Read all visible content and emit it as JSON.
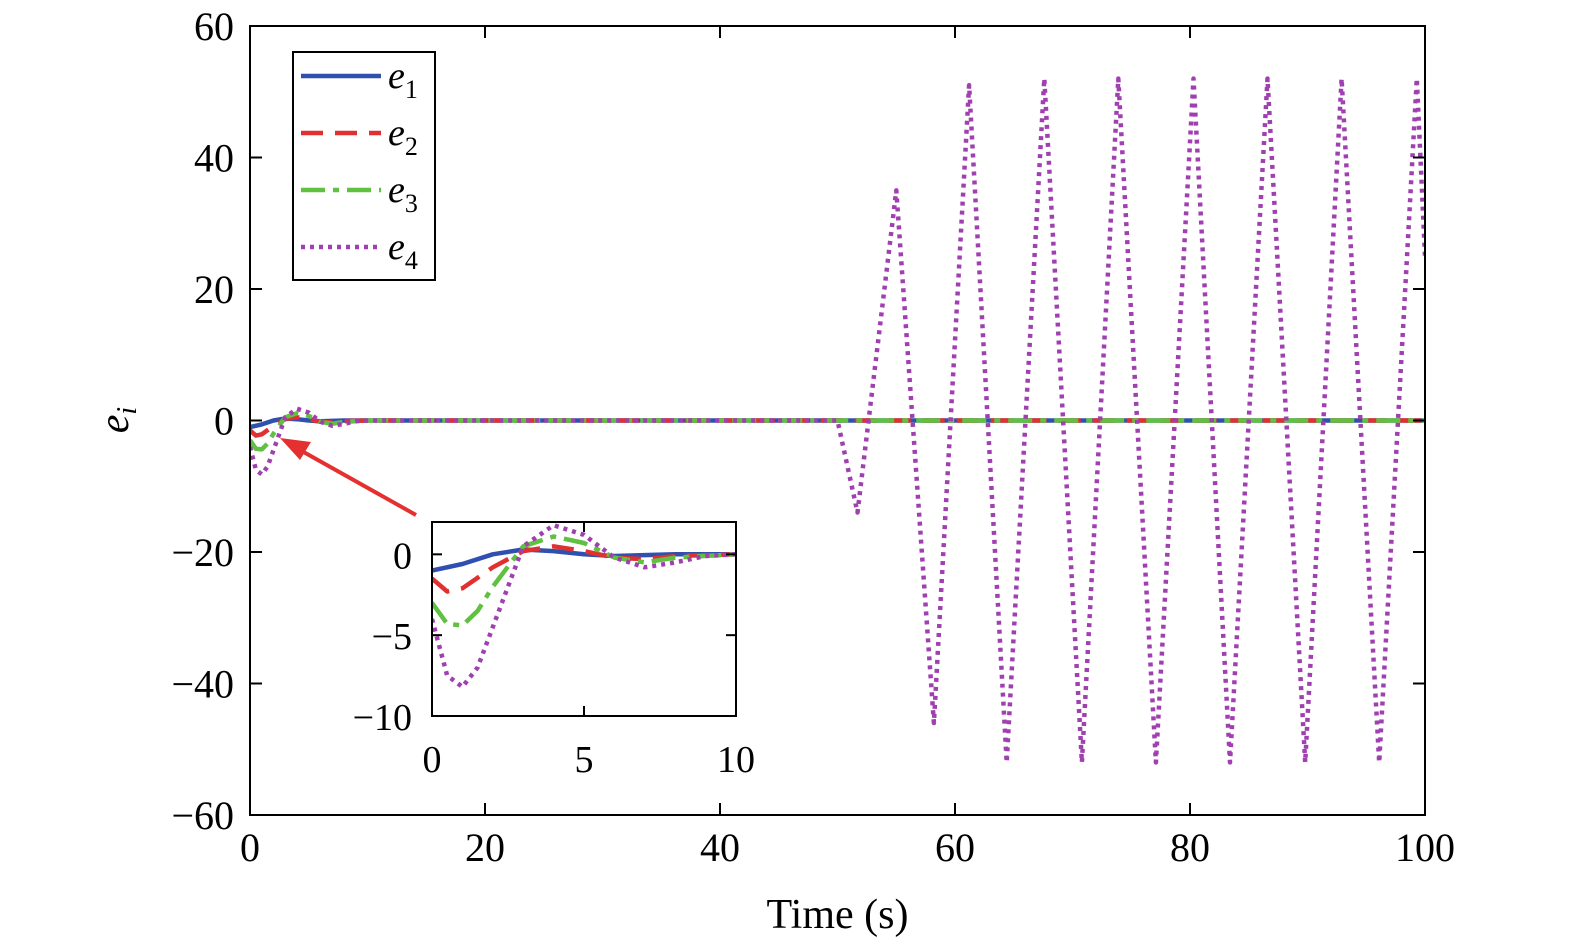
{
  "chart_data": [
    {
      "type": "line",
      "xlabel": "Time (s)",
      "ylabel": "e",
      "ylabel_subscript": "i",
      "xlim": [
        0,
        100
      ],
      "ylim": [
        -60,
        60
      ],
      "xticks": [
        0,
        20,
        40,
        60,
        80,
        100
      ],
      "yticks": [
        60,
        40,
        20,
        0,
        -20,
        -40,
        -60
      ],
      "xtick_labels": [
        "0",
        "20",
        "40",
        "60",
        "80",
        "100"
      ],
      "ytick_labels": [
        "60",
        "40",
        "20",
        "0",
        "−20",
        "−40",
        "−60"
      ],
      "grid": false,
      "legend": "top-left",
      "series": [
        {
          "name": "e",
          "subscript": "1",
          "color": "#3050b0",
          "style": "solid",
          "x": [
            0,
            1,
            2,
            3,
            4,
            5,
            6,
            8,
            10,
            50,
            100
          ],
          "y": [
            -1,
            -0.6,
            0,
            0.3,
            0.2,
            0,
            -0.1,
            0,
            0,
            0,
            0
          ]
        },
        {
          "name": "e",
          "subscript": "2",
          "color": "#e03030",
          "style": "dashed",
          "x": [
            0,
            0.5,
            1,
            2,
            3,
            4,
            5,
            6,
            7,
            8,
            10,
            50,
            100
          ],
          "y": [
            -1.5,
            -2.3,
            -2.1,
            -0.8,
            0.2,
            0.5,
            0.2,
            -0.2,
            -0.3,
            -0.1,
            0,
            0,
            0
          ]
        },
        {
          "name": "e",
          "subscript": "3",
          "color": "#60c040",
          "style": "dashdot",
          "x": [
            0,
            0.5,
            1,
            1.5,
            2,
            3,
            4,
            5,
            6,
            7,
            8,
            10,
            50,
            100
          ],
          "y": [
            -3,
            -4.3,
            -4.4,
            -3.5,
            -2,
            0.5,
            1.1,
            0.7,
            -0.2,
            -0.5,
            -0.2,
            0,
            0,
            0
          ]
        },
        {
          "name": "e",
          "subscript": "4",
          "color": "#a040b0",
          "style": "dotted",
          "x": [
            0,
            0.5,
            1,
            1.5,
            2,
            3,
            4,
            5,
            6,
            7,
            8,
            9,
            10,
            50,
            51.7,
            55,
            58.2,
            61.2,
            64.4,
            67.6,
            70.8,
            73.9,
            77.1,
            80.3,
            83.4,
            86.6,
            89.8,
            92.9,
            96.1,
            99.3,
            100
          ],
          "y": [
            -4,
            -7.5,
            -8.2,
            -7,
            -4.5,
            0.5,
            1.8,
            1.2,
            -0.2,
            -0.8,
            -0.5,
            -0.1,
            0,
            0,
            -14,
            35,
            -46,
            51,
            -52,
            52,
            -52,
            52,
            -52,
            52,
            -52,
            52,
            -52,
            52,
            -52,
            52,
            25
          ]
        }
      ]
    },
    {
      "type": "line",
      "role": "inset",
      "xlim": [
        0,
        10
      ],
      "ylim": [
        -10,
        2
      ],
      "xticks": [
        0,
        5,
        10
      ],
      "yticks": [
        0,
        -5,
        -10
      ],
      "xtick_labels": [
        "0",
        "5",
        "10"
      ],
      "ytick_labels": [
        "0",
        "−5",
        "−10"
      ],
      "annotation": "arrow from inset to initial transient of main plot",
      "arrow_color": "#e53030"
    }
  ]
}
